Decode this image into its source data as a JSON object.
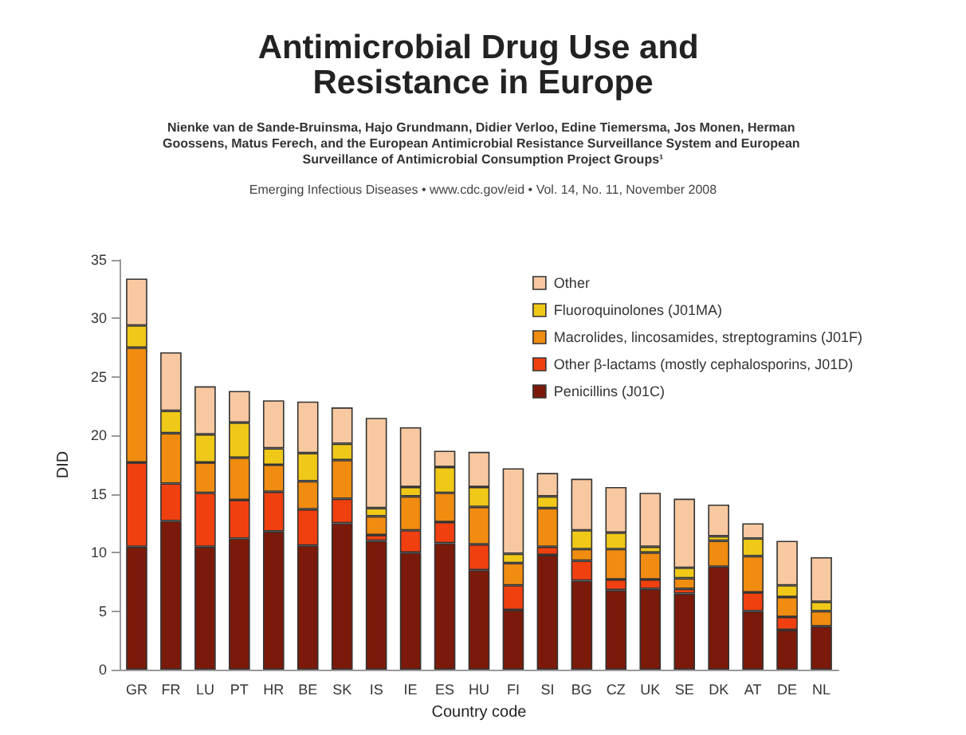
{
  "chart_data": {
    "type": "bar",
    "title": "Antimicrobial Drug Use and Resistance in Europe",
    "subtitle": "Nienke van de Sande-Bruinsma, Hajo Grundmann, Didier Verloo, Edine Tiemersma, Jos Monen, Herman Goossens, Matus Ferech, and the European Antimicrobial Resistance Surveillance System and European Surveillance of Antimicrobial Consumption Project Groups¹",
    "annotations": [
      "Emerging Infectious Diseases • www.cdc.gov/eid • Vol. 14, No. 11, November 2008"
    ],
    "xlabel": "Country code",
    "ylabel": "DID",
    "stacked": true,
    "legend": "top right",
    "grid": false,
    "categories": [
      "GR",
      "FR",
      "LU",
      "PT",
      "HR",
      "BE",
      "SK",
      "IS",
      "IE",
      "ES",
      "HU",
      "FI",
      "SI",
      "BG",
      "CZ",
      "UK",
      "SE",
      "DK",
      "AT",
      "DE",
      "NL"
    ],
    "ylim": [
      0,
      35
    ],
    "yticks": [
      0,
      5,
      10,
      15,
      20,
      25,
      30,
      35
    ],
    "series": [
      {
        "name": "Penicillins (J01C)",
        "color": "#7b1a0a",
        "values": [
          10.5,
          12.7,
          10.5,
          11.2,
          11.8,
          10.6,
          12.5,
          11.0,
          10.0,
          10.8,
          8.5,
          5.1,
          9.8,
          7.6,
          6.8,
          6.9,
          6.5,
          8.8,
          5.0,
          3.4,
          3.7
        ]
      },
      {
        "name": "Other β-lactams (mostly cephalosporins, J01D)",
        "color": "#f04010",
        "values": [
          7.2,
          3.2,
          4.6,
          3.3,
          3.4,
          3.1,
          2.1,
          0.5,
          1.9,
          1.8,
          2.2,
          2.1,
          0.7,
          1.7,
          0.9,
          0.8,
          0.4,
          0,
          1.6,
          1.1,
          0
        ]
      },
      {
        "name": "Macrolides, lincosamides, streptogramins (J01F)",
        "color": "#f08c10",
        "values": [
          9.8,
          4.3,
          2.6,
          3.6,
          2.3,
          2.4,
          3.3,
          1.6,
          2.9,
          2.5,
          3.2,
          1.9,
          3.3,
          1.0,
          2.6,
          2.3,
          0.9,
          2.2,
          3.1,
          1.7,
          1.3
        ]
      },
      {
        "name": "Fluoroquinolones (J01MA)",
        "color": "#f0c818",
        "values": [
          1.9,
          1.9,
          2.4,
          3.0,
          1.4,
          2.4,
          1.4,
          0.7,
          0.8,
          2.2,
          1.7,
          0.8,
          1.0,
          1.6,
          1.4,
          0.5,
          0.9,
          0.4,
          1.5,
          1.0,
          0.8
        ]
      },
      {
        "name": "Other",
        "color": "#f8c8a0",
        "values": [
          4.0,
          5.0,
          4.1,
          2.7,
          4.1,
          4.4,
          3.1,
          7.7,
          5.1,
          1.4,
          3.0,
          7.3,
          2.0,
          4.4,
          3.9,
          4.6,
          5.9,
          2.7,
          1.3,
          3.8,
          3.8
        ]
      }
    ]
  }
}
